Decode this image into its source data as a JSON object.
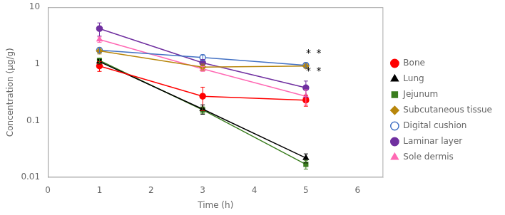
{
  "chart_data": {
    "type": "line",
    "title": "",
    "x_label": "Time (h)",
    "y_label": "Concentration (μg/g)",
    "x": [
      1,
      3,
      5
    ],
    "series": [
      {
        "name": "Bone",
        "color": "#FF0000",
        "marker": "circle",
        "values": [
          0.92,
          0.27,
          0.23
        ],
        "yerr": [
          0.18,
          0.12,
          0.05
        ]
      },
      {
        "name": "Lung",
        "color": "#000000",
        "marker": "triangle",
        "values": [
          1.1,
          0.16,
          0.022
        ],
        "yerr": [
          0.1,
          0.03,
          0.004
        ]
      },
      {
        "name": "Jejunum",
        "color": "#3a7d1e",
        "marker": "square",
        "values": [
          1.15,
          0.155,
          0.017
        ],
        "yerr": [
          0.12,
          0.02,
          0.003
        ]
      },
      {
        "name": "Subcutaneous tissue",
        "color": "#b8860b",
        "marker": "diamond",
        "values": [
          1.7,
          0.88,
          0.92
        ],
        "yerr": [
          0.2,
          0.12,
          0.08
        ]
      },
      {
        "name": "Digital cushion",
        "color": "#4472c4",
        "marker": "open_circle",
        "values": [
          1.75,
          1.3,
          0.95
        ],
        "yerr": [
          0.18,
          0.15,
          0.1
        ]
      },
      {
        "name": "Laminar layer",
        "color": "#7030a0",
        "marker": "circle",
        "values": [
          4.2,
          1.05,
          0.38
        ],
        "yerr": [
          1.1,
          0.15,
          0.12
        ]
      },
      {
        "name": "Sole dermis",
        "color": "#FF69B4",
        "marker": "triangle",
        "values": [
          2.7,
          0.82,
          0.27
        ],
        "yerr": [
          0.3,
          0.08,
          0.08
        ]
      }
    ],
    "annotations": [
      {
        "text": "*",
        "x": 5.05,
        "y": 1.25
      },
      {
        "text": "*",
        "x": 5.25,
        "y": 1.25
      },
      {
        "text": "*",
        "x": 5.05,
        "y": 0.6
      },
      {
        "text": "*",
        "x": 5.25,
        "y": 0.6
      }
    ],
    "xlim": [
      0,
      6.5
    ],
    "xticks": [
      0,
      1,
      2,
      3,
      4,
      5,
      6
    ],
    "ylim": [
      0.01,
      10
    ],
    "yticks": [
      0.01,
      0.1,
      1,
      10
    ],
    "log": "y",
    "grid": false,
    "legend": "right"
  }
}
